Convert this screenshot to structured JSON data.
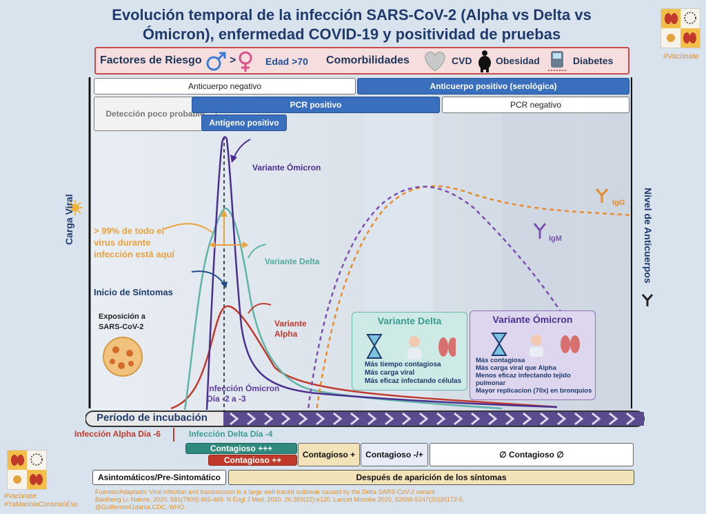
{
  "title": "Evolución temporal de la infección SARS-CoV-2 (Alpha vs Delta vs Ómicron), enfermedad COVID-19 y positividad de pruebas",
  "hashtag_top": "#Vacúnate",
  "risk": {
    "label": "Factores de Riesgo",
    "male_gt_female": ">",
    "age": "Edad  >70",
    "comorbid": "Comorbilidades",
    "cvd": "CVD",
    "obesity": "Obesidad",
    "diabetes": "Diabetes"
  },
  "bars": {
    "ab_neg": "Anticuerpo negativo",
    "ab_pos": "Anticuerpo positivo (serológica)",
    "detect": "Detección poco probable",
    "pcr_pos": "PCR positivo",
    "pcr_neg": "PCR negativo",
    "antigen": "Antígeno positivo"
  },
  "axes": {
    "left": "Carga Viral",
    "right": "Nivel de Anticuerpos"
  },
  "labels": {
    "omicron": "Variante Ómicron",
    "delta": "Variante Delta",
    "alpha_1": "Variante",
    "alpha_2": "Alpha",
    "pct_1": "> 99% de todo el",
    "pct_2": "virus durante",
    "pct_3": "infección está aquí",
    "sintomas": "Inicio de Síntomas",
    "expo_1": "Exposición a",
    "expo_2": "SARS-CoV-2",
    "om_inf_1": "Infección Ómicron",
    "om_inf_2": "Día -2 a -3",
    "igg": "IgG",
    "igm": "IgM"
  },
  "delta_panel": {
    "title": "Variante Delta",
    "lines": [
      "Más tiempo contagiosa",
      "Más carga viral",
      "Más eficaz infectando células"
    ]
  },
  "omicron_panel": {
    "title": "Variante Ómicron",
    "lines": [
      "Más contagiosa",
      "Más carga viral que Alpha",
      "Menos eficaz infectando tejido",
      "pulmonar",
      "Mayor replicacion (70x) en bronquios"
    ]
  },
  "incubation": "Período de incubación",
  "alpha_day": "Infección Alpha Día -6",
  "delta_day": "Infección Delta Día -4",
  "contagious": {
    "delta_ppp": "Contagioso +++",
    "alpha_pp": "Contagioso ++",
    "plus": "Contagioso +",
    "pm": "Contagioso -/+",
    "none": "∅ Contagioso ∅"
  },
  "phase": {
    "asym": "Asintomáticos/Pre-Sintomático",
    "after": "Después de aparición de los síntomas"
  },
  "footer": [
    "Fuentes/Adaptado: Viral infection and transmission in a large well-traced outbreak caused by the Delta SARS-CoV-2 variant",
    "Baisheng Li. Nature, 2020. 581(7809):465-469. N Engl J Med. 2020. 26;383(22):e120. Lancet Microbe 2020, S2666-5247(20)30172-5.",
    "@Guillermo41dama.CDC, WHO."
  ],
  "hashtags_bottom": [
    "#Vacúnate",
    "#YaMariolaContestóEso"
  ],
  "colors": {
    "omicron": "#5a3a9e",
    "delta": "#5fb3a8",
    "alpha": "#c0392b",
    "igg": "#e98a2b",
    "igm": "#7b4fb0"
  }
}
